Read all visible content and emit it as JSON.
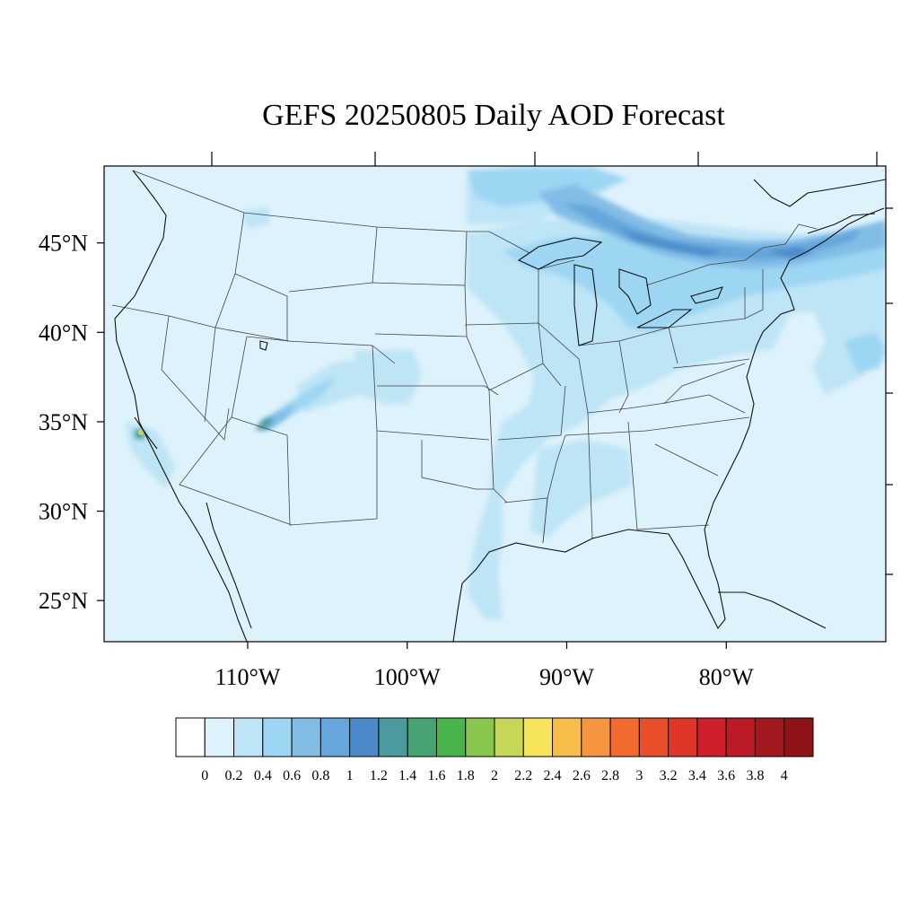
{
  "title": "GEFS 20250805 Daily AOD Forecast",
  "colors": {
    "background": "#ffffff",
    "ocean_base": "#def2fb",
    "border_line": "#444444",
    "coast_line": "#111111"
  },
  "map": {
    "projection": "equirectangular",
    "lon_range": [
      -119,
      -70
    ],
    "lat_range": [
      22.7,
      49.3
    ],
    "lat_ticks": [
      {
        "value": 45,
        "label": "45°N"
      },
      {
        "value": 40,
        "label": "40°N"
      },
      {
        "value": 35,
        "label": "35°N"
      },
      {
        "value": 30,
        "label": "30°N"
      },
      {
        "value": 25,
        "label": "25°N"
      }
    ],
    "lon_ticks": [
      {
        "value": -110,
        "label": "110°W"
      },
      {
        "value": -100,
        "label": "100°W"
      },
      {
        "value": -90,
        "label": "90°W"
      },
      {
        "value": -80,
        "label": "80°W"
      }
    ]
  },
  "colorbar": {
    "labels": [
      "0",
      "0.2",
      "0.4",
      "0.6",
      "0.8",
      "1",
      "1.2",
      "1.4",
      "1.6",
      "1.8",
      "2",
      "2.2",
      "2.4",
      "2.6",
      "2.8",
      "3",
      "3.2",
      "3.4",
      "3.6",
      "3.8",
      "4"
    ],
    "colors": [
      "#ffffff",
      "#def2fb",
      "#bde5f6",
      "#9dd6f3",
      "#82bde6",
      "#65a6db",
      "#4b8ac8",
      "#4b9a9e",
      "#47a472",
      "#4ab44c",
      "#87c54d",
      "#c4d757",
      "#f6e55b",
      "#f7bd4a",
      "#f6953f",
      "#f16b2e",
      "#e95029",
      "#de3727",
      "#cf1f2a",
      "#bb1b25",
      "#a2191f",
      "#8e1418"
    ]
  },
  "chart_data": {
    "type": "heatmap",
    "title": "GEFS 20250805 Daily AOD Forecast",
    "variable_range": [
      0,
      4
    ],
    "contour_levels": [
      0,
      0.2,
      0.4,
      0.6,
      0.8,
      1,
      1.2,
      1.4,
      1.6,
      1.8,
      2,
      2.2,
      2.4,
      2.6,
      2.8,
      3,
      3.2,
      3.4,
      3.6,
      3.8,
      4
    ],
    "x_range_lon": [
      -119,
      -70
    ],
    "y_range_lat": [
      22.7,
      49.3
    ],
    "features": [
      {
        "region": "Canadian smoke plume (Ontario/Quebec to Maine)",
        "aod": 0.9
      },
      {
        "region": "Great Lakes / New England",
        "aod": 0.6
      },
      {
        "region": "Upper Midwest / Ohio Valley",
        "aod": 0.3
      },
      {
        "region": "Mississippi Valley / East Texas",
        "aod": 0.3
      },
      {
        "region": "Arizona plume (northeast AZ)",
        "aod": 1.4
      },
      {
        "region": "Southern California hotspot",
        "aod": 2.3
      },
      {
        "region": "Background CONUS",
        "aod": 0.1
      }
    ]
  }
}
